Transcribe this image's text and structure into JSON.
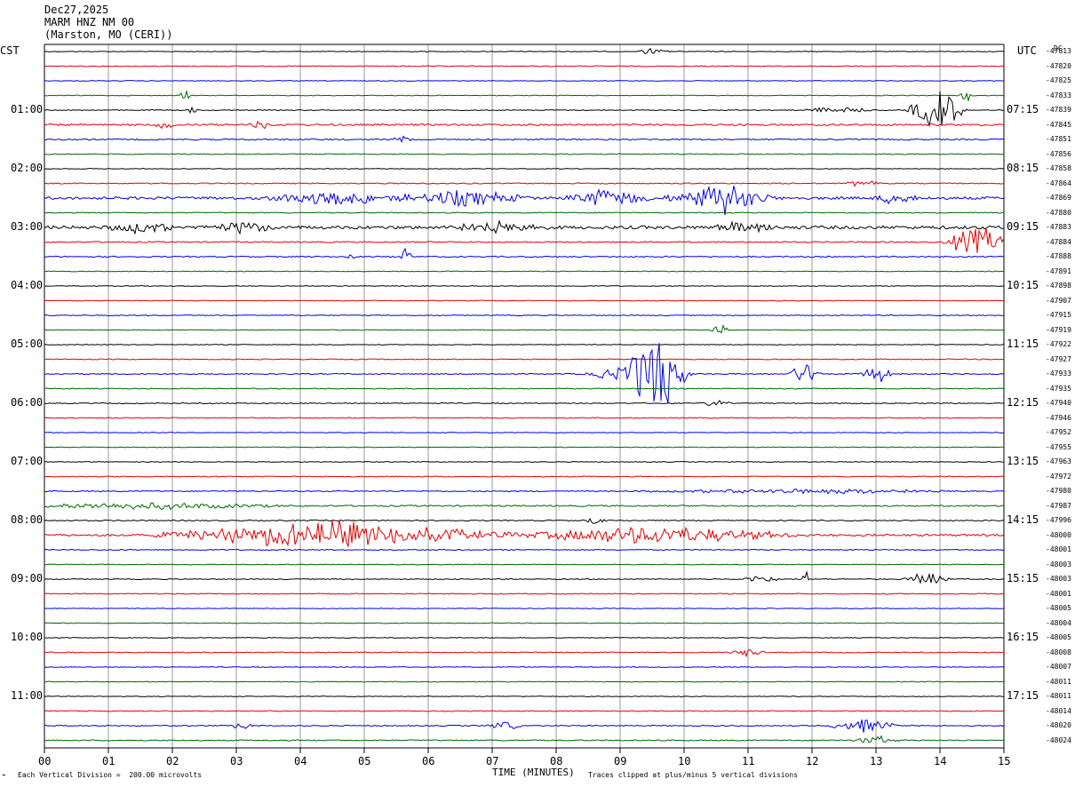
{
  "header": {
    "date": "Dec27,2025",
    "station": "MARM HNZ NM 00",
    "location": "(Marston, MO (CERI))"
  },
  "left_tz": "CST",
  "right_tz": "UTC",
  "dc_label": "DC",
  "footer": {
    "left_mark": "⌁",
    "scale_note": "Each Vertical Division =  200.00 microvolts",
    "xlabel": "TIME (MINUTES)",
    "clip_note": "Traces clipped at plus/minus 5 vertical divisions"
  },
  "colors": {
    "black": "#000000",
    "red": "#e00000",
    "blue": "#0000e0",
    "green": "#006400",
    "grid": "#808080"
  },
  "chart_data": {
    "type": "line",
    "title": "MARM HNZ NM 00",
    "xlabel": "TIME (MINUTES)",
    "xlim": [
      0,
      15
    ],
    "x_ticks": [
      "00",
      "01",
      "02",
      "03",
      "04",
      "05",
      "06",
      "07",
      "08",
      "09",
      "10",
      "11",
      "12",
      "13",
      "14",
      "15"
    ],
    "left_hour_labels": [
      "01:00",
      "02:00",
      "03:00",
      "04:00",
      "05:00",
      "06:00",
      "07:00",
      "08:00",
      "09:00",
      "10:00",
      "11:00"
    ],
    "right_hour_labels": [
      "07:15",
      "08:15",
      "09:15",
      "10:15",
      "11:15",
      "12:15",
      "13:15",
      "14:15",
      "15:15",
      "16:15",
      "17:15"
    ],
    "trace_color_cycle": [
      "black",
      "red",
      "blue",
      "green"
    ],
    "dc_offsets": [
      -47813,
      -47820,
      -47825,
      -47833,
      -47839,
      -47845,
      -47851,
      -47856,
      -47858,
      -47864,
      -47869,
      -47880,
      -47883,
      -47884,
      -47888,
      -47891,
      -47898,
      -47907,
      -47915,
      -47919,
      -47922,
      -47927,
      -47933,
      -47935,
      -47940,
      -47946,
      -47952,
      -47955,
      -47963,
      -47972,
      -47980,
      -47987,
      -47996,
      -48000,
      -48001,
      -48003,
      -48003,
      -48001,
      -48005,
      -48004,
      -48005,
      -48008,
      -48007,
      -48011,
      -48011,
      -48014,
      -48020,
      -48024
    ],
    "trace_noise": [
      0.4,
      0.5,
      0.4,
      0.4,
      0.5,
      1.0,
      0.8,
      0.5,
      0.4,
      0.6,
      1.5,
      0.5,
      1.8,
      0.7,
      0.7,
      0.4,
      0.4,
      0.4,
      0.5,
      0.4,
      0.4,
      0.5,
      0.6,
      0.5,
      0.5,
      0.5,
      0.4,
      0.4,
      0.4,
      0.5,
      0.6,
      0.8,
      0.6,
      1.2,
      0.6,
      0.4,
      0.5,
      0.5,
      0.4,
      0.4,
      0.4,
      0.5,
      0.4,
      0.4,
      0.4,
      0.5,
      0.6,
      0.6
    ],
    "events": [
      {
        "trace": 0,
        "minute": 9.5,
        "amp": 3,
        "dur": 0.3
      },
      {
        "trace": 3,
        "minute": 2.2,
        "amp": 5,
        "dur": 0.1
      },
      {
        "trace": 3,
        "minute": 14.4,
        "amp": 8,
        "dur": 0.1
      },
      {
        "trace": 4,
        "minute": 2.3,
        "amp": 5,
        "dur": 0.1
      },
      {
        "trace": 4,
        "minute": 12.4,
        "amp": 3,
        "dur": 0.6
      },
      {
        "trace": 4,
        "minute": 13.95,
        "amp": 22,
        "dur": 0.5
      },
      {
        "trace": 5,
        "minute": 1.9,
        "amp": 4,
        "dur": 0.2
      },
      {
        "trace": 5,
        "minute": 3.4,
        "amp": 4,
        "dur": 0.2
      },
      {
        "trace": 6,
        "minute": 5.6,
        "amp": 3,
        "dur": 0.2
      },
      {
        "trace": 9,
        "minute": 12.8,
        "amp": 3,
        "dur": 0.3
      },
      {
        "trace": 10,
        "minute": 4.5,
        "amp": 6,
        "dur": 1.2
      },
      {
        "trace": 10,
        "minute": 6.5,
        "amp": 7,
        "dur": 1.2
      },
      {
        "trace": 10,
        "minute": 8.8,
        "amp": 7,
        "dur": 0.8
      },
      {
        "trace": 10,
        "minute": 10.6,
        "amp": 13,
        "dur": 1.0
      },
      {
        "trace": 10,
        "minute": 13.3,
        "amp": 5,
        "dur": 0.4
      },
      {
        "trace": 12,
        "minute": 1.5,
        "amp": 5,
        "dur": 0.6
      },
      {
        "trace": 12,
        "minute": 3.1,
        "amp": 5,
        "dur": 0.6
      },
      {
        "trace": 12,
        "minute": 7.1,
        "amp": 6,
        "dur": 0.8
      },
      {
        "trace": 12,
        "minute": 11.0,
        "amp": 5,
        "dur": 0.6
      },
      {
        "trace": 13,
        "minute": 14.6,
        "amp": 14,
        "dur": 0.6
      },
      {
        "trace": 14,
        "minute": 5.65,
        "amp": 9,
        "dur": 0.1
      },
      {
        "trace": 14,
        "minute": 4.8,
        "amp": 4,
        "dur": 0.1
      },
      {
        "trace": 19,
        "minute": 10.55,
        "amp": 10,
        "dur": 0.15
      },
      {
        "trace": 22,
        "minute": 9.55,
        "amp": 30,
        "dur": 0.6
      },
      {
        "trace": 22,
        "minute": 9.2,
        "amp": 8,
        "dur": 0.8
      },
      {
        "trace": 22,
        "minute": 11.9,
        "amp": 10,
        "dur": 0.3
      },
      {
        "trace": 22,
        "minute": 13.0,
        "amp": 9,
        "dur": 0.3
      },
      {
        "trace": 24,
        "minute": 10.5,
        "amp": 3,
        "dur": 0.3
      },
      {
        "trace": 30,
        "minute": 12.0,
        "amp": 2,
        "dur": 3.0
      },
      {
        "trace": 31,
        "minute": 1.5,
        "amp": 3,
        "dur": 2.5
      },
      {
        "trace": 32,
        "minute": 8.6,
        "amp": 5,
        "dur": 0.2
      },
      {
        "trace": 33,
        "minute": 4.5,
        "amp": 12,
        "dur": 3.0
      },
      {
        "trace": 33,
        "minute": 9.5,
        "amp": 8,
        "dur": 2.5
      },
      {
        "trace": 36,
        "minute": 11.2,
        "amp": 5,
        "dur": 0.3
      },
      {
        "trace": 36,
        "minute": 11.9,
        "amp": 12,
        "dur": 0.05
      },
      {
        "trace": 36,
        "minute": 13.8,
        "amp": 6,
        "dur": 0.4
      },
      {
        "trace": 41,
        "minute": 11.0,
        "amp": 4,
        "dur": 0.3
      },
      {
        "trace": 46,
        "minute": 3.1,
        "amp": 4,
        "dur": 0.2
      },
      {
        "trace": 46,
        "minute": 7.2,
        "amp": 4,
        "dur": 0.3
      },
      {
        "trace": 46,
        "minute": 12.8,
        "amp": 7,
        "dur": 0.6
      },
      {
        "trace": 47,
        "minute": 13.0,
        "amp": 4,
        "dur": 0.4
      }
    ]
  }
}
